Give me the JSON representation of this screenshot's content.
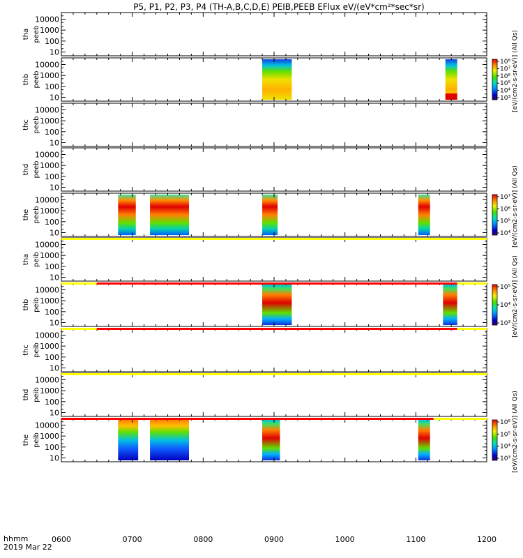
{
  "title": "P5, P1, P2, P3, P4 (TH-A,B,C,D,E) PEIB,PEEB EFlux eV/(eV*cm²*sec*sr)",
  "footer": {
    "time_label": "hhmm",
    "date_label": "2019 Mar 22"
  },
  "x_ticks": [
    "0600",
    "0700",
    "0800",
    "0900",
    "1000",
    "1100",
    "1200"
  ],
  "chart_data": {
    "type": "heatmap",
    "x_range": [
      "0600",
      "1200"
    ],
    "y_scale": "log",
    "y_ticks": [
      "10",
      "100",
      "1000",
      "10000"
    ],
    "panels": [
      {
        "label1": "tha",
        "label2": "peeb",
        "blocks": []
      },
      {
        "label1": "thb",
        "label2": "peeb",
        "blocks": [
          {
            "start": "0850",
            "end": "0915",
            "profile": "wide"
          },
          {
            "start": "1125",
            "end": "1135",
            "profile": "wide",
            "low_red": true
          }
        ]
      },
      {
        "label1": "thc",
        "label2": "peeb",
        "blocks": []
      },
      {
        "label1": "thd",
        "label2": "peeb",
        "blocks": []
      },
      {
        "label1": "the",
        "label2": "peeb",
        "blocks": [
          {
            "start": "0648",
            "end": "0703",
            "profile": "top"
          },
          {
            "start": "0715",
            "end": "0748",
            "profile": "top"
          },
          {
            "start": "0850",
            "end": "0903",
            "profile": "top"
          },
          {
            "start": "1102",
            "end": "1112",
            "profile": "top"
          }
        ]
      },
      {
        "label1": "tha",
        "label2": "peib",
        "blocks": []
      },
      {
        "label1": "thb",
        "label2": "peib",
        "blocks": [
          {
            "start": "0850",
            "end": "0915",
            "profile": "mid"
          },
          {
            "start": "1123",
            "end": "1135",
            "profile": "mid"
          }
        ]
      },
      {
        "label1": "thc",
        "label2": "peib",
        "blocks": []
      },
      {
        "label1": "thd",
        "label2": "peib",
        "blocks": []
      },
      {
        "label1": "the",
        "label2": "peib",
        "blocks": [
          {
            "start": "0648",
            "end": "0705",
            "profile": "blue"
          },
          {
            "start": "0715",
            "end": "0748",
            "profile": "blue"
          },
          {
            "start": "0850",
            "end": "0905",
            "profile": "mid"
          },
          {
            "start": "1102",
            "end": "1112",
            "profile": "mid"
          }
        ]
      }
    ],
    "mode_bars": [
      {
        "after_panel": 4,
        "segments": [
          {
            "start": "0600",
            "end": "1200",
            "color": "#ffff00"
          }
        ]
      },
      {
        "after_panel": 5,
        "segments": [
          {
            "start": "0600",
            "end": "0630",
            "color": "#ffff00"
          },
          {
            "start": "0630",
            "end": "1135",
            "color": "#ff0000"
          },
          {
            "start": "1135",
            "end": "1200",
            "color": "#ffff00"
          }
        ]
      },
      {
        "after_panel": 6,
        "segments": [
          {
            "start": "0600",
            "end": "0630",
            "color": "#ffff00"
          },
          {
            "start": "0630",
            "end": "1135",
            "color": "#ff0000"
          },
          {
            "start": "1135",
            "end": "1200",
            "color": "#ffff00"
          }
        ]
      },
      {
        "after_panel": 7,
        "segments": [
          {
            "start": "0600",
            "end": "1200",
            "color": "#ffff00"
          }
        ]
      },
      {
        "after_panel": 8,
        "segments": [
          {
            "start": "0600",
            "end": "1115",
            "color": "#ff0000"
          },
          {
            "start": "1115",
            "end": "1200",
            "color": "#ffff00"
          }
        ]
      }
    ],
    "colorbars": [
      {
        "panel": 1,
        "ticks": [
          "10³",
          "10⁴",
          "10⁵",
          "10⁶",
          "10⁷",
          "10⁸"
        ],
        "label": "[eV/(cm2-s-sr-eV)] (All Qs)"
      },
      {
        "panel": 4,
        "ticks": [
          "10⁴",
          "10⁵",
          "10⁶",
          "10⁷"
        ],
        "label": "[eV/(cm2-s-sr-eV)] (All Qs)"
      },
      {
        "panel": 6,
        "ticks": [
          "10³",
          "10⁴",
          "10⁵"
        ],
        "label": "[eV/(cm2-s-sr-eV)] (All Qs)"
      },
      {
        "panel": 9,
        "ticks": [
          "10³",
          "10⁴",
          "10⁵",
          "10⁶"
        ],
        "label": "[eV/(cm2-s-sr-eV)] (All Qs)"
      }
    ]
  }
}
